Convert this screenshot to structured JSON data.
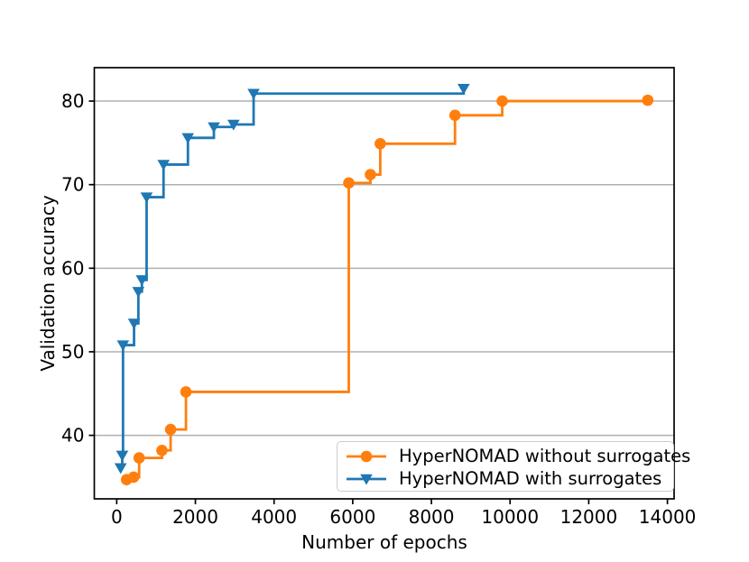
{
  "figure": {
    "background": "#ffffff",
    "spine_color": "#000000",
    "tick_color": "#000000"
  },
  "chart_data": {
    "type": "line",
    "drawstyle": "steps-post",
    "title": "",
    "xlabel": "Number of epochs",
    "ylabel": "Validation accuracy",
    "xlim": [
      -570,
      14170
    ],
    "ylim": [
      32.4,
      84.0
    ],
    "xticks": [
      0,
      2000,
      4000,
      6000,
      8000,
      10000,
      12000,
      14000
    ],
    "yticks": [
      40,
      50,
      60,
      70,
      80
    ],
    "grid": "horizontal",
    "grid_color": "#b0b0b0",
    "legend_position": "lower right",
    "series": [
      {
        "name": "HyperNOMAD without surrogates",
        "color": "#ff7f0e",
        "marker": "circle",
        "points": [
          [
            250,
            34.7
          ],
          [
            430,
            35.0
          ],
          [
            570,
            37.3
          ],
          [
            1150,
            38.2
          ],
          [
            1370,
            40.7
          ],
          [
            1760,
            45.2
          ],
          [
            5900,
            70.2
          ],
          [
            6450,
            71.2
          ],
          [
            6700,
            74.9
          ],
          [
            8600,
            78.3
          ],
          [
            9800,
            80.0
          ],
          [
            13500,
            80.1
          ]
        ]
      },
      {
        "name": "HyperNOMAD with surrogates",
        "color": "#1f77b4",
        "marker": "triangle-down",
        "points": [
          [
            100,
            36.1
          ],
          [
            140,
            37.6
          ],
          [
            160,
            50.8
          ],
          [
            440,
            53.4
          ],
          [
            550,
            57.2
          ],
          [
            640,
            58.6
          ],
          [
            760,
            68.5
          ],
          [
            1190,
            72.4
          ],
          [
            1810,
            75.6
          ],
          [
            2470,
            76.9
          ],
          [
            2970,
            77.2
          ],
          [
            3480,
            80.9
          ],
          [
            8820,
            81.5
          ]
        ]
      }
    ]
  }
}
